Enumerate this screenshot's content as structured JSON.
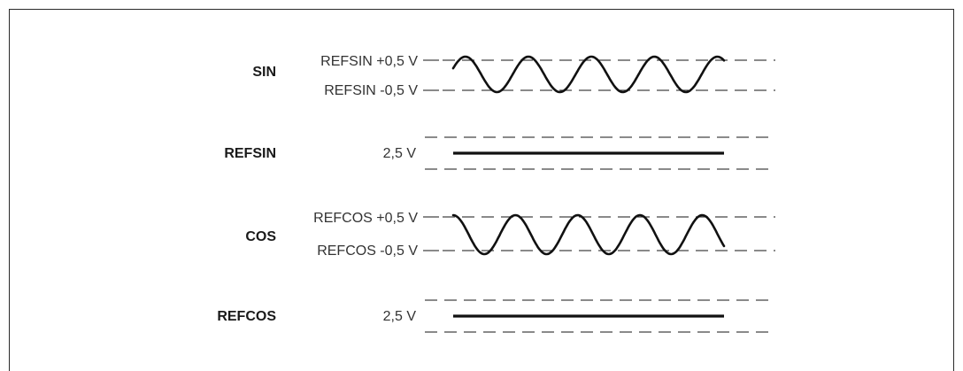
{
  "signals": [
    {
      "name": "SIN",
      "upper_label": "REFSIN +0,5 V",
      "lower_label": "REFSIN -0,5 V",
      "kind": "sine",
      "phase": "sin"
    },
    {
      "name": "REFSIN",
      "level_label": "2,5 V",
      "kind": "dc"
    },
    {
      "name": "COS",
      "upper_label": "REFCOS +0,5 V",
      "lower_label": "REFCOS -0,5 V",
      "kind": "sine",
      "phase": "cos"
    },
    {
      "name": "REFCOS",
      "level_label": "2,5 V",
      "kind": "dc"
    }
  ],
  "colors": {
    "ink": "#111111",
    "frame": "#2a2a2a"
  }
}
